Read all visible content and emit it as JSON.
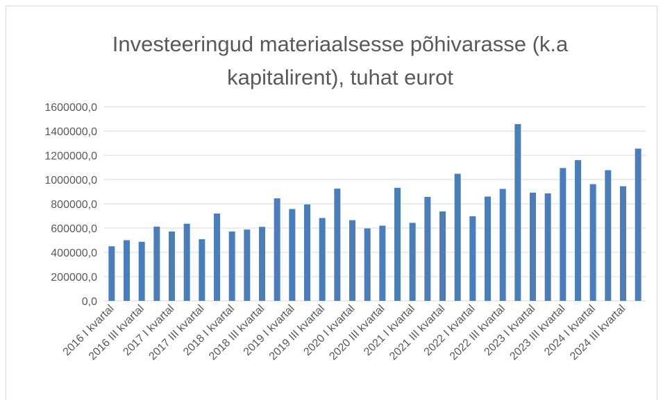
{
  "chart_data": {
    "type": "bar",
    "title": "Investeeringud materiaalsesse põhivarasse (k.a kapitalirent), tuhat eurot",
    "categories": [
      "2016 I kvartal",
      null,
      "2016 III kvartal",
      null,
      "2017 I kvartal",
      null,
      "2017 III kvartal",
      null,
      "2018 I kvartal",
      null,
      "2018 III kvartal",
      null,
      "2019 I kvartal",
      null,
      "2019 III kvartal",
      null,
      "2020 I kvartal",
      null,
      "2020 III kvartal",
      null,
      "2021 I kvartal",
      null,
      "2021 III kvartal",
      null,
      "2022 I kvartal",
      null,
      "2022 III kvartal",
      null,
      "2023 I kvartal",
      null,
      "2023 III kvartal",
      null,
      "2024 I kvartal",
      null,
      "2024 III kvartal",
      null
    ],
    "values": [
      450000,
      500000,
      487000,
      612000,
      572000,
      636000,
      508000,
      720000,
      572000,
      588000,
      610000,
      845000,
      757000,
      795000,
      683000,
      925000,
      665000,
      597000,
      620000,
      932000,
      643000,
      857000,
      737000,
      1048000,
      697000,
      860000,
      923000,
      1457000,
      892000,
      886000,
      1095000,
      1160000,
      962000,
      1077000,
      945000,
      1255000
    ],
    "color": "#4a7ebb",
    "ylim": [
      0,
      1600000
    ],
    "yticks": [
      {
        "value": 0,
        "label": "0,0"
      },
      {
        "value": 200000,
        "label": "200000,0"
      },
      {
        "value": 400000,
        "label": "400000,0"
      },
      {
        "value": 600000,
        "label": "600000,0"
      },
      {
        "value": 800000,
        "label": "800000,0"
      },
      {
        "value": 1000000,
        "label": "1000000,0"
      },
      {
        "value": 1200000,
        "label": "1200000,0"
      },
      {
        "value": 1400000,
        "label": "1400000,0"
      },
      {
        "value": 1600000,
        "label": "1600000,0"
      }
    ],
    "grid": true
  }
}
